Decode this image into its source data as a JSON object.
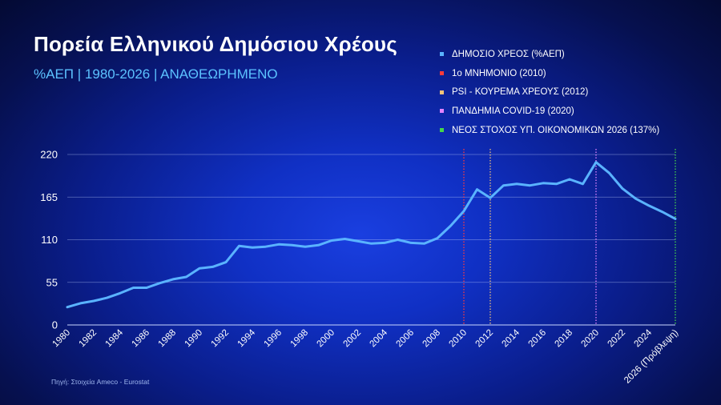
{
  "header": {
    "title": "Πορεία Ελληνικού Δημόσιου Χρέους",
    "subtitle": "%ΑΕΠ | 1980-2026 | ΑΝΑΘΕΩΡΗΜΕΝΟ"
  },
  "legend": [
    {
      "label": "ΔΗΜΟΣΙΟ ΧΡΕΟΣ (%ΑΕΠ)",
      "color": "#5ab3ff"
    },
    {
      "label": "1ο ΜΝΗΜΟΝΙΟ (2010)",
      "color": "#ff3b3b"
    },
    {
      "label": "PSI - ΚΟΥΡΕΜΑ ΧΡΕΟΥΣ (2012)",
      "color": "#f0c27a"
    },
    {
      "label": "ΠΑΝΔΗΜΙΑ COVID-19 (2020)",
      "color": "#e283ff"
    },
    {
      "label": "ΝΕΟΣ ΣΤΟΧΟΣ ΥΠ. ΟΙΚΟΝΟΜΙΚΩΝ 2026 (137%)",
      "color": "#45d64a"
    }
  ],
  "source": "Πηγή: Στοιχεία Ameco - Eurostat",
  "chart_data": {
    "type": "line",
    "title": "Πορεία Ελληνικού Δημόσιου Χρέους",
    "subtitle": "%ΑΕΠ | 1980-2026 | ΑΝΑΘΕΩΡΗΜΕΝΟ",
    "ylim": [
      0,
      220
    ],
    "yticks": [
      0,
      55,
      110,
      165,
      220
    ],
    "xlim": [
      1980,
      2026
    ],
    "xtick_labels": [
      {
        "year": 1980,
        "label": "1980"
      },
      {
        "year": 1982,
        "label": "1982"
      },
      {
        "year": 1984,
        "label": "1984"
      },
      {
        "year": 1986,
        "label": "1986"
      },
      {
        "year": 1988,
        "label": "1988"
      },
      {
        "year": 1990,
        "label": "1990"
      },
      {
        "year": 1992,
        "label": "1992"
      },
      {
        "year": 1994,
        "label": "1994"
      },
      {
        "year": 1996,
        "label": "1996"
      },
      {
        "year": 1998,
        "label": "1998"
      },
      {
        "year": 2000,
        "label": "2000"
      },
      {
        "year": 2002,
        "label": "2002"
      },
      {
        "year": 2004,
        "label": "2004"
      },
      {
        "year": 2006,
        "label": "2006"
      },
      {
        "year": 2008,
        "label": "2008"
      },
      {
        "year": 2010,
        "label": "2010"
      },
      {
        "year": 2012,
        "label": "2012"
      },
      {
        "year": 2014,
        "label": "2014"
      },
      {
        "year": 2016,
        "label": "2016"
      },
      {
        "year": 2018,
        "label": "2018"
      },
      {
        "year": 2020,
        "label": "2020"
      },
      {
        "year": 2022,
        "label": "2022"
      },
      {
        "year": 2024,
        "label": "2024"
      },
      {
        "year": 2026,
        "label": "2026 (Πρόβλεψη)"
      }
    ],
    "grid": true,
    "series": [
      {
        "name": "ΔΗΜΟΣΙΟ ΧΡΕΟΣ (%ΑΕΠ)",
        "color": "#5ab3ff",
        "x": [
          1980,
          1981,
          1982,
          1983,
          1984,
          1985,
          1986,
          1987,
          1988,
          1989,
          1990,
          1991,
          1992,
          1993,
          1994,
          1995,
          1996,
          1997,
          1998,
          1999,
          2000,
          2001,
          2002,
          2003,
          2004,
          2005,
          2006,
          2007,
          2008,
          2009,
          2010,
          2011,
          2012,
          2013,
          2014,
          2015,
          2016,
          2017,
          2018,
          2019,
          2020,
          2021,
          2022,
          2023,
          2024,
          2025,
          2026
        ],
        "y": [
          23,
          28,
          31,
          35,
          41,
          48,
          48,
          54,
          59,
          62,
          73,
          75,
          81,
          102,
          100,
          101,
          104,
          103,
          101,
          103,
          109,
          111,
          108,
          105,
          106,
          110,
          106,
          105,
          112,
          128,
          147,
          175,
          164,
          180,
          182,
          180,
          183,
          182,
          188,
          182,
          210,
          196,
          176,
          163,
          154,
          146,
          137
        ]
      }
    ],
    "markers": [
      {
        "label": "1ο ΜΝΗΜΟΝΙΟ (2010)",
        "year": 2010,
        "color": "#ff3b3b"
      },
      {
        "label": "PSI - ΚΟΥΡΕΜΑ ΧΡΕΟΥΣ (2012)",
        "year": 2012,
        "color": "#f0c27a"
      },
      {
        "label": "ΠΑΝΔΗΜΙΑ COVID-19 (2020)",
        "year": 2020,
        "color": "#e283ff"
      },
      {
        "label": "ΝΕΟΣ ΣΤΟΧΟΣ ΥΠ. ΟΙΚΟΝΟΜΙΚΩΝ 2026 (137%)",
        "year": 2026,
        "color": "#45d64a"
      }
    ]
  }
}
